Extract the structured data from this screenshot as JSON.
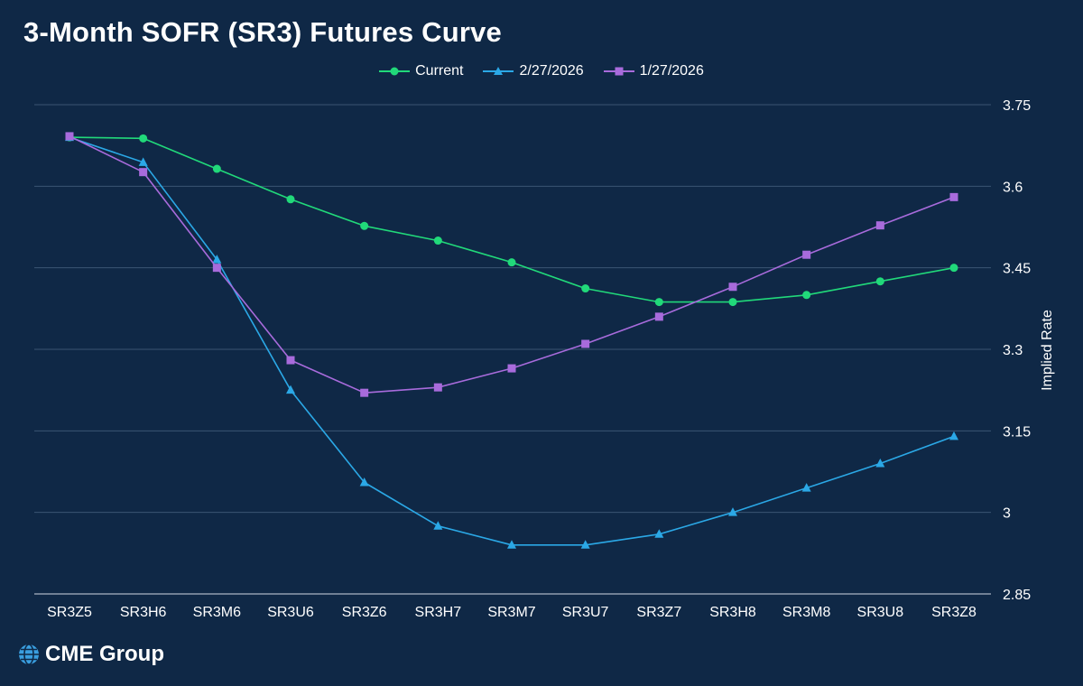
{
  "chart_data": {
    "type": "line",
    "title": "3-Month SOFR (SR3) Futures Curve",
    "xlabel": "",
    "ylabel": "Implied Rate",
    "categories": [
      "SR3Z5",
      "SR3H6",
      "SR3M6",
      "SR3U6",
      "SR3Z6",
      "SR3H7",
      "SR3M7",
      "SR3U7",
      "SR3Z7",
      "SR3H8",
      "SR3M8",
      "SR3U8",
      "SR3Z8"
    ],
    "ylim": [
      2.85,
      3.75
    ],
    "yticks": [
      "3.75",
      "3.6",
      "3.45",
      "3.3",
      "3.15",
      "3",
      "2.85"
    ],
    "ytick_values": [
      3.75,
      3.6,
      3.45,
      3.3,
      3.15,
      3.0,
      2.85
    ],
    "legend_position": "top-center",
    "grid": true,
    "series": [
      {
        "name": "Current",
        "color": "#21d97a",
        "marker": "circle",
        "values": [
          3.69,
          3.688,
          3.632,
          3.576,
          3.527,
          3.5,
          3.46,
          3.412,
          3.387,
          3.387,
          3.4,
          3.425,
          3.45
        ]
      },
      {
        "name": "2/27/2026",
        "color": "#2ba8e6",
        "marker": "triangle",
        "values": [
          3.69,
          3.644,
          3.465,
          3.225,
          3.055,
          2.975,
          2.94,
          2.94,
          2.96,
          3.0,
          3.045,
          3.09,
          3.14
        ]
      },
      {
        "name": "1/27/2026",
        "color": "#a86bdc",
        "marker": "square",
        "values": [
          3.692,
          3.626,
          3.45,
          3.28,
          3.22,
          3.23,
          3.265,
          3.31,
          3.36,
          3.415,
          3.474,
          3.528,
          3.58
        ]
      }
    ]
  },
  "brand": {
    "name": "CME Group",
    "icon": "globe-icon"
  }
}
